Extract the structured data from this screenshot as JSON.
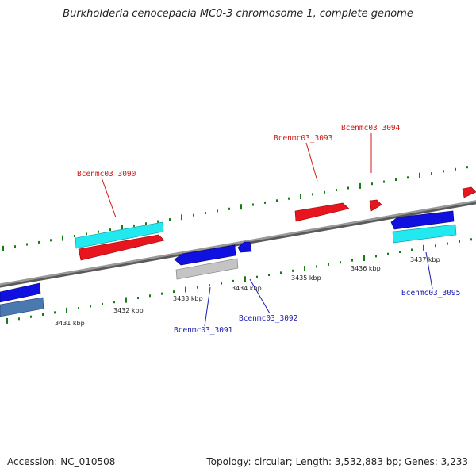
{
  "title": "Burkholderia cenocepacia MC0-3 chromosome 1, complete genome",
  "footer": {
    "accession": "Accession: NC_010508",
    "stats": "Topology: circular; Length: 3,532,883 bp; Genes: 3,233"
  },
  "colors": {
    "backbone": "#8a8a8a",
    "tick": "#1a7a1a",
    "forward_cds": "#e8141e",
    "reverse_cds": "#1010e0",
    "rna_cyan": "#22e8f0",
    "pseudo_gray": "#c4c4c4",
    "steelblue": "#4a78b0",
    "forward_label": "#d01818",
    "reverse_label": "#1a1ab0"
  },
  "scale": {
    "unit": "kbp",
    "labels": [
      "3431 kbp",
      "3432 kbp",
      "3433 kbp",
      "3434 kbp",
      "3435 kbp",
      "3436 kbp",
      "3437 kbp"
    ]
  },
  "genes": {
    "forward": [
      "Bcenmc03_3090",
      "Bcenmc03_3093",
      "Bcenmc03_3094"
    ],
    "reverse": [
      "Bcenmc03_3091",
      "Bcenmc03_3092",
      "Bcenmc03_3095"
    ]
  }
}
